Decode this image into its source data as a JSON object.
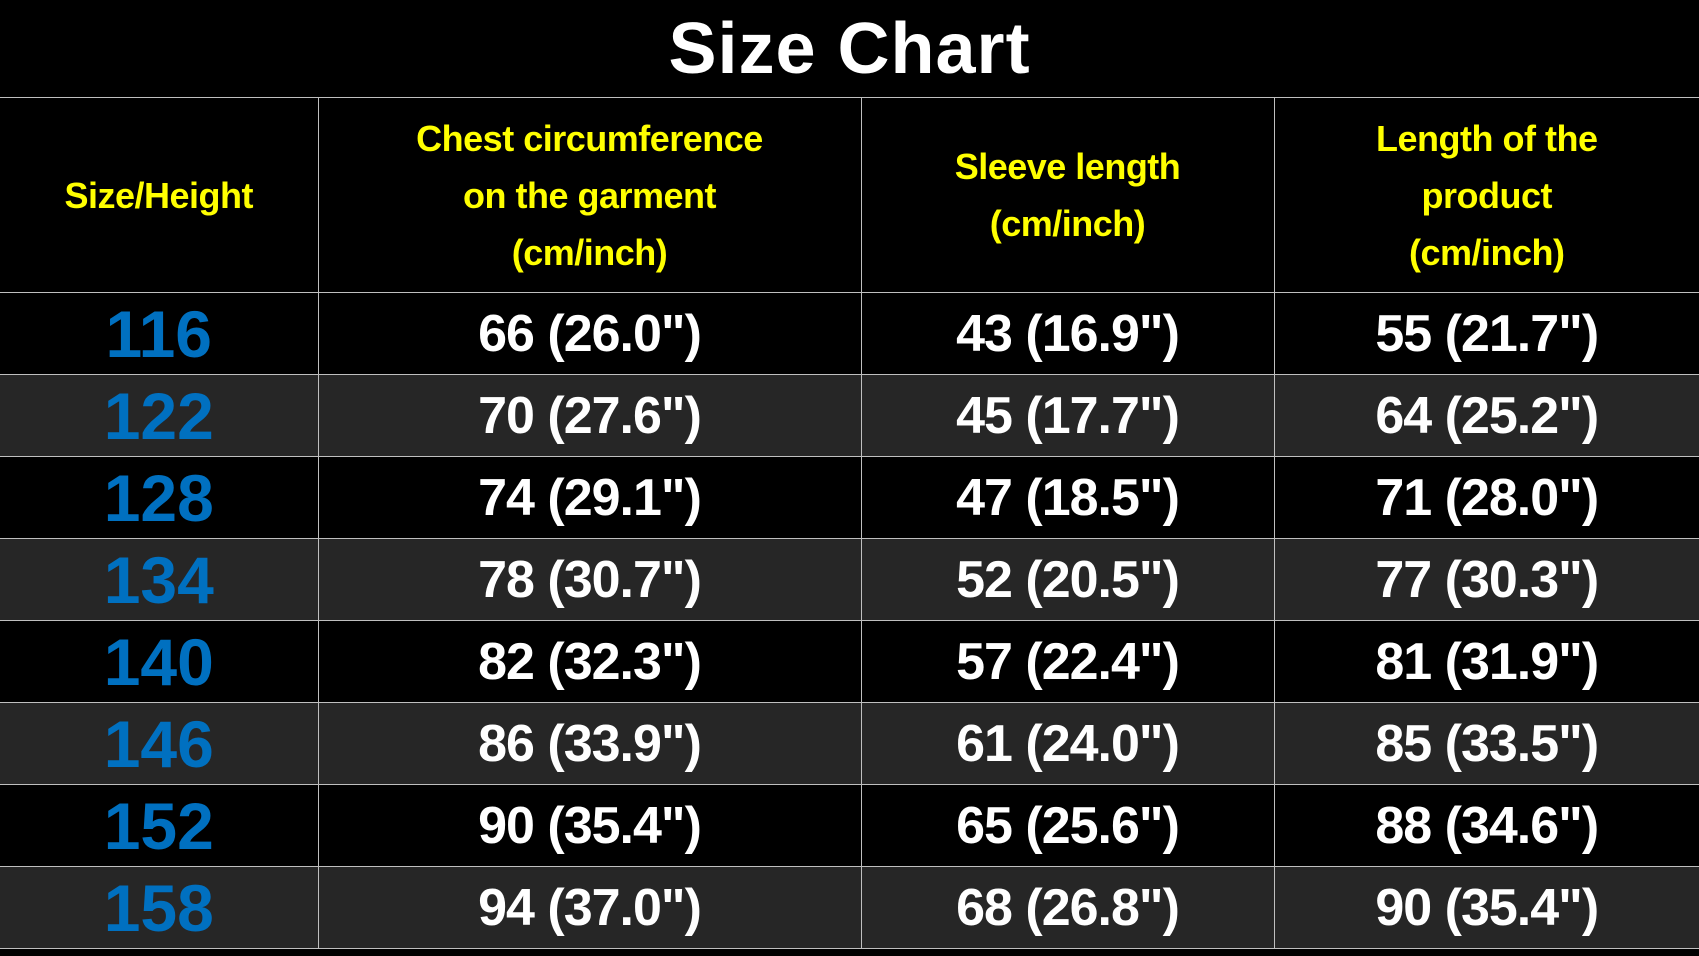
{
  "title": "Size Chart",
  "headers": [
    "Size/Height",
    "Chest circumference\non the garment\n(cm/inch)",
    "Sleeve length\n(cm/inch)",
    "Length of the\nproduct\n(cm/inch)"
  ],
  "rows": [
    [
      "116",
      "66 (26.0\")",
      "43 (16.9\")",
      "55 (21.7\")"
    ],
    [
      "122",
      "70 (27.6\")",
      "45 (17.7\")",
      "64 (25.2\")"
    ],
    [
      "128",
      "74 (29.1\")",
      "47 (18.5\")",
      "71 (28.0\")"
    ],
    [
      "134",
      "78 (30.7\")",
      "52 (20.5\")",
      "77 (30.3\")"
    ],
    [
      "140",
      "82 (32.3\")",
      "57 (22.4\")",
      "81 (31.9\")"
    ],
    [
      "146",
      "86 (33.9\")",
      "61 (24.0\")",
      "85 (33.5\")"
    ],
    [
      "152",
      "90 (35.4\")",
      "65 (25.6\")",
      "88 (34.6\")"
    ],
    [
      "158",
      "94 (37.0\")",
      "68 (26.8\")",
      "90 (35.4\")"
    ]
  ],
  "colors": {
    "header_text": "#ffff00",
    "size_text": "#0070c0",
    "value_text": "#ffffff",
    "row_alt": "#262626",
    "row": "#000000",
    "border": "#bfbfbf"
  }
}
